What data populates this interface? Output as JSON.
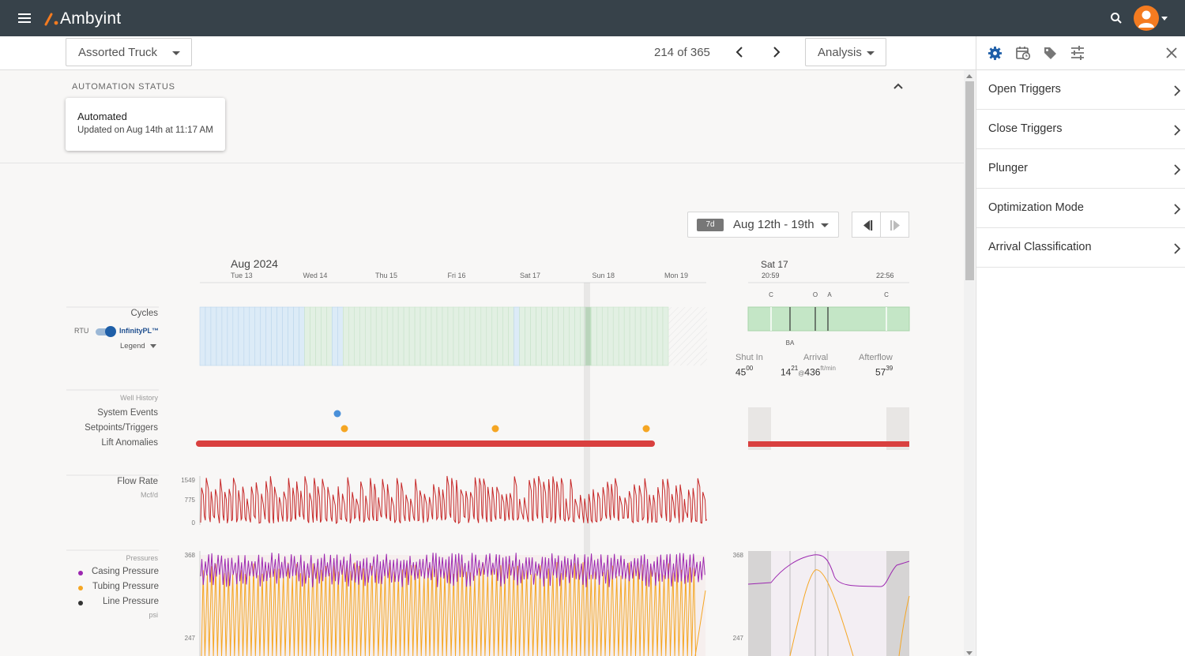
{
  "app": {
    "name": "Ambyint"
  },
  "toolbar": {
    "asset": "Assorted Truck",
    "page_counter": "214 of 365",
    "view": "Analysis"
  },
  "automation": {
    "section_label": "AUTOMATION STATUS",
    "status": "Automated",
    "updated": "Updated on Aug 14th at 11:17 AM"
  },
  "range": {
    "badge": "7d",
    "label": "Aug 12th - 19th"
  },
  "timeline": {
    "month": "Aug 2024",
    "days": [
      "Tue 13",
      "Wed 14",
      "Thu 15",
      "Fri 16",
      "Sat 17",
      "Sun 18",
      "Mon 19"
    ],
    "detail_day": "Sat 17",
    "detail_start": "20:59",
    "detail_end": "22:56",
    "detail_markers": [
      "C",
      "O",
      "A",
      "C"
    ],
    "detail_marker_ba": "BA"
  },
  "cycles": {
    "label": "Cycles",
    "toggle_off": "RTU",
    "toggle_on": "InfinityPL™",
    "legend": "Legend"
  },
  "cycle_stats": {
    "shut_in_label": "Shut In",
    "shut_in_main": "45",
    "shut_in_sub": "00",
    "arrival_label": "Arrival",
    "arrival_main": "14",
    "arrival_sub": "21",
    "arrival_at": "@",
    "arrival_speed": "436",
    "arrival_unit": "ft/min",
    "afterflow_label": "Afterflow",
    "afterflow_main": "57",
    "afterflow_sub": "39"
  },
  "well_history": {
    "title": "Well History",
    "rows": [
      "System Events",
      "Setpoints/Triggers",
      "Lift Anomalies"
    ]
  },
  "flow_rate": {
    "label": "Flow Rate",
    "unit": "Mcf/d",
    "ticks": [
      "1549",
      "775",
      "0"
    ]
  },
  "pressures": {
    "title": "Pressures",
    "series": [
      "Casing Pressure",
      "Tubing Pressure",
      "Line Pressure"
    ],
    "unit": "psi",
    "ticks": [
      "368",
      "247"
    ],
    "detail_ticks": [
      "368",
      "247"
    ]
  },
  "colors": {
    "casing": "#9c27b0",
    "tubing": "#f5a623",
    "line": "#333333",
    "flow": "#c62828",
    "anomaly": "#d9403f",
    "brand": "#f47b20"
  },
  "side_panel": {
    "items": [
      "Open Triggers",
      "Close Triggers",
      "Plunger",
      "Optimization Mode",
      "Arrival Classification"
    ]
  }
}
